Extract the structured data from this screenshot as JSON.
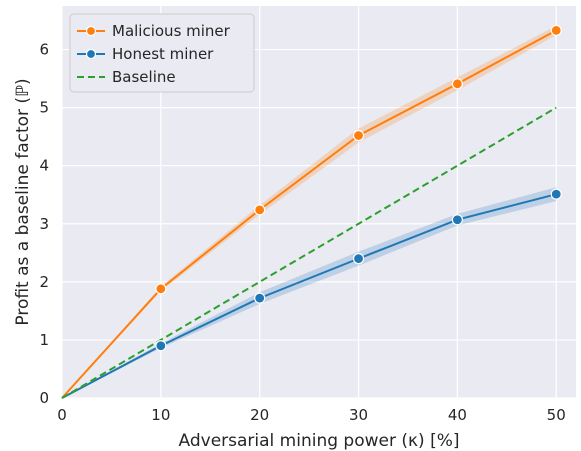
{
  "chart_data": {
    "type": "line",
    "xlabel": "Adversarial mining power (κ) [%]",
    "ylabel": "Profit as a baseline factor (ℙ)",
    "xlim": [
      0,
      52
    ],
    "ylim": [
      0,
      6.75
    ],
    "xticks": [
      0,
      10,
      20,
      30,
      40,
      50
    ],
    "yticks": [
      0,
      1,
      2,
      3,
      4,
      5,
      6
    ],
    "grid": true,
    "legend_position": "top-left",
    "series": [
      {
        "name": "Malicious miner",
        "color": "#ff7f0e",
        "style": "solid",
        "markers": true,
        "x": [
          0,
          10,
          20,
          30,
          40,
          50
        ],
        "values": [
          0,
          1.88,
          3.24,
          4.52,
          5.41,
          6.33
        ],
        "band_lower": [
          0,
          1.84,
          3.16,
          4.4,
          5.3,
          6.25
        ],
        "band_upper": [
          0,
          1.92,
          3.32,
          4.64,
          5.52,
          6.41
        ]
      },
      {
        "name": "Honest miner",
        "color": "#1f77b4",
        "style": "solid",
        "markers": true,
        "x": [
          0,
          10,
          20,
          30,
          40,
          50
        ],
        "values": [
          0,
          0.9,
          1.72,
          2.4,
          3.07,
          3.51
        ],
        "band_lower": [
          0,
          0.86,
          1.62,
          2.28,
          2.97,
          3.39
        ],
        "band_upper": [
          0,
          0.94,
          1.82,
          2.52,
          3.17,
          3.63
        ]
      },
      {
        "name": "Baseline",
        "color": "#2ca02c",
        "style": "dashed",
        "markers": false,
        "x": [
          0,
          50
        ],
        "values": [
          0,
          5
        ],
        "band_lower": null,
        "band_upper": null
      }
    ]
  }
}
